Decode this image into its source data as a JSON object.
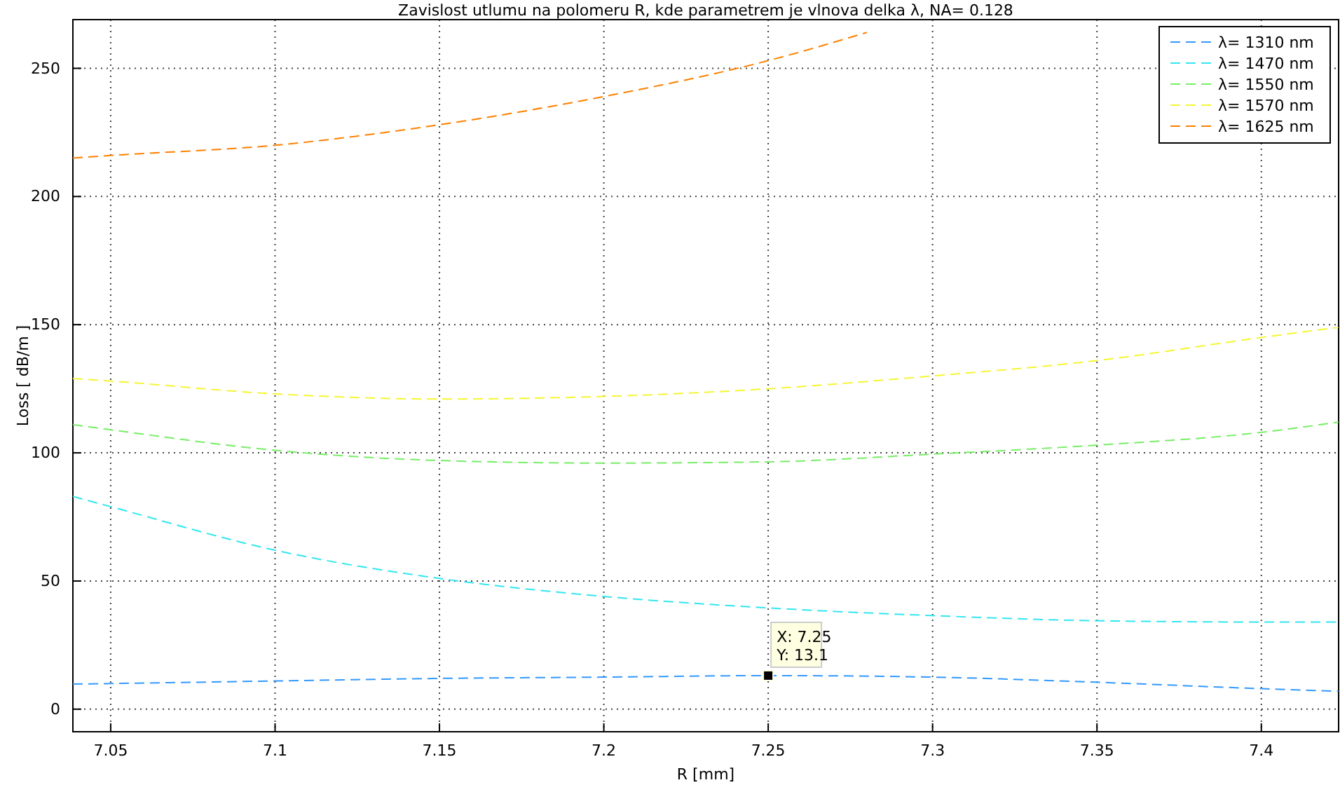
{
  "chart_data": {
    "type": "line",
    "title": "Zavislost utlumu na polomeru R, kde parametrem je vlnova delka λ, NA= 0.128",
    "xlabel": "R [mm]",
    "ylabel": "Loss [ dB/m ]",
    "x": [
      7.0385,
      7.05,
      7.1,
      7.15,
      7.2,
      7.25,
      7.3,
      7.35,
      7.4,
      7.4235
    ],
    "series": [
      {
        "name": "λ= 1310 nm",
        "color": "#3399ff",
        "values": [
          9.8,
          10,
          11,
          12,
          12.5,
          13.1,
          12.5,
          10.5,
          8,
          7
        ]
      },
      {
        "name": "λ= 1470 nm",
        "color": "#33e6f0",
        "values": [
          83,
          79,
          62,
          51,
          44,
          39.5,
          36.5,
          34.5,
          34,
          34
        ]
      },
      {
        "name": "λ= 1550 nm",
        "color": "#77ee66",
        "values": [
          111,
          109,
          101,
          97,
          96,
          96.5,
          99.5,
          103,
          108,
          112
        ]
      },
      {
        "name": "λ= 1570 nm",
        "color": "#f5f533",
        "values": [
          129,
          128,
          123,
          121,
          122,
          125,
          130,
          136,
          145,
          149
        ]
      },
      {
        "name": "λ= 1625 nm",
        "color": "#ff8000",
        "x": [
          7.0385,
          7.05,
          7.1,
          7.15,
          7.2,
          7.25,
          7.28
        ],
        "values": [
          215,
          216,
          220,
          228,
          239,
          253,
          264
        ]
      }
    ],
    "xlim": [
      7.0385,
      7.4235
    ],
    "xticks": [
      7.05,
      7.1,
      7.15,
      7.2,
      7.25,
      7.3,
      7.35,
      7.4
    ],
    "ylim": [
      -8.8,
      269
    ],
    "yticks": [
      0,
      50,
      100,
      150,
      200,
      250
    ],
    "grid": true,
    "legend": "top right",
    "line_style": "dashed",
    "marker": "none",
    "annotations": [
      {
        "text": "X: 7.25\nY: 13.1",
        "x": 7.25,
        "y": 13.1
      }
    ]
  }
}
